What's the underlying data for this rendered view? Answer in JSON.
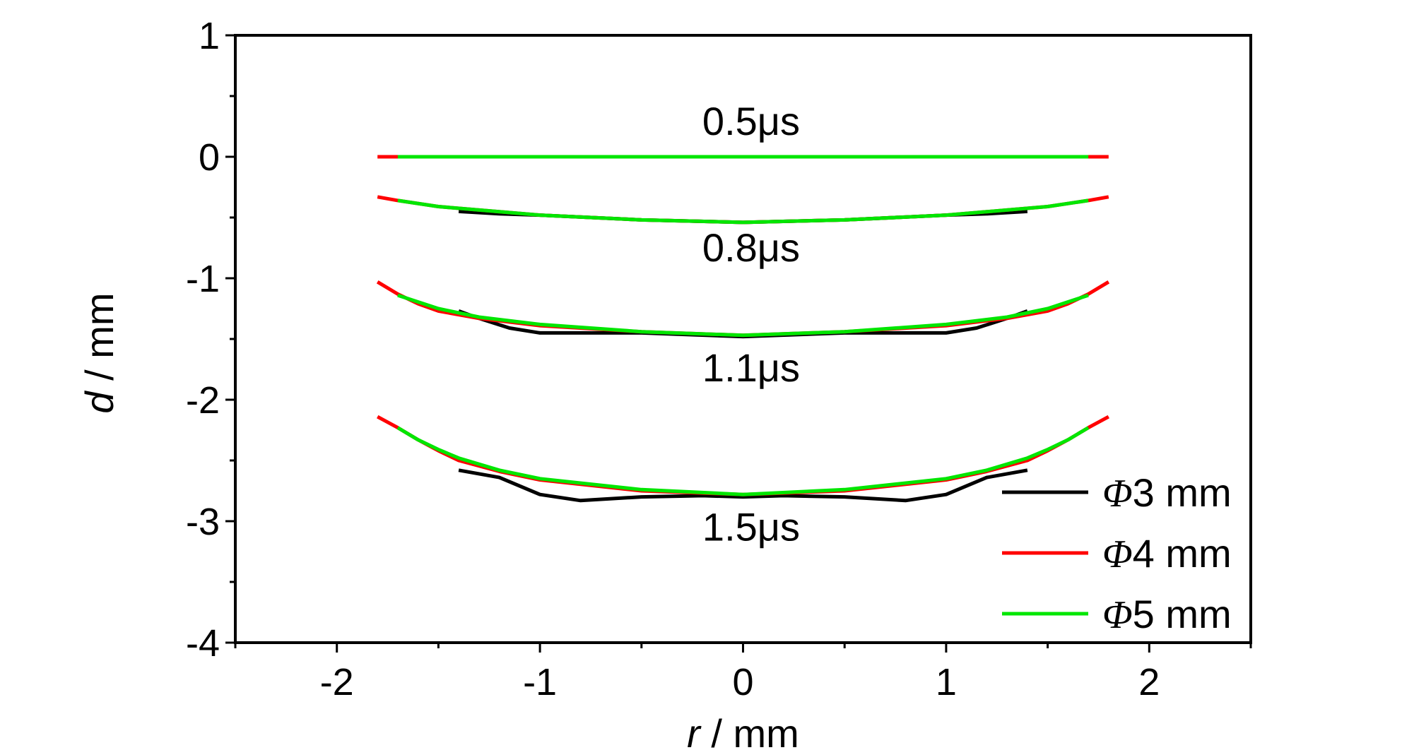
{
  "chart_data": {
    "type": "line",
    "xlabel": {
      "var": "r",
      "unit": " / mm"
    },
    "ylabel": {
      "var": "d",
      "unit": " / mm"
    },
    "xlim": [
      -2.5,
      2.5
    ],
    "ylim": [
      -4,
      1
    ],
    "xticks": [
      -2,
      -1,
      0,
      1,
      2
    ],
    "xtick_labels": [
      "-2",
      "-1",
      "0",
      "1",
      "2"
    ],
    "yticks": [
      1,
      0,
      -1,
      -2,
      -3,
      -4
    ],
    "ytick_labels": [
      "1",
      "0",
      "-1",
      "-2",
      "-3",
      "-4"
    ],
    "grid": false,
    "legend_position": "bottom-right",
    "legend": [
      {
        "phi": "Φ",
        "text": "3 mm",
        "color": "#000000"
      },
      {
        "phi": "Φ",
        "text": "4 mm",
        "color": "#ff0000"
      },
      {
        "phi": "Φ",
        "text": "5 mm",
        "color": "#00e600"
      }
    ],
    "annotations": [
      {
        "text": "0.5μs",
        "x": 0.04,
        "y": 0.18
      },
      {
        "text": "0.8μs",
        "x": 0.04,
        "y": -0.86
      },
      {
        "text": "1.1μs",
        "x": 0.04,
        "y": -1.85
      },
      {
        "text": "1.5μs",
        "x": 0.04,
        "y": -3.16
      }
    ],
    "series": [
      {
        "name": "Φ3 mm",
        "time": "0.5μs",
        "color": "#000000",
        "x": [
          -1.4,
          -1.0,
          -0.5,
          0,
          0.5,
          1.0,
          1.4
        ],
        "y": [
          0,
          0,
          0,
          0,
          0,
          0,
          0
        ]
      },
      {
        "name": "Φ4 mm",
        "time": "0.5μs",
        "color": "#ff0000",
        "x": [
          -1.8,
          -1.0,
          0,
          1.0,
          1.8
        ],
        "y": [
          0,
          0,
          0,
          0,
          0
        ]
      },
      {
        "name": "Φ5 mm",
        "time": "0.5μs",
        "color": "#00e600",
        "x": [
          -1.7,
          -1.0,
          0,
          1.0,
          1.7
        ],
        "y": [
          0,
          0,
          0,
          0,
          0
        ]
      },
      {
        "name": "Φ3 mm",
        "time": "0.8μs",
        "color": "#000000",
        "x": [
          -1.4,
          -1.2,
          -1.0,
          -0.5,
          0,
          0.5,
          1.0,
          1.2,
          1.4
        ],
        "y": [
          -0.45,
          -0.47,
          -0.48,
          -0.52,
          -0.54,
          -0.52,
          -0.48,
          -0.47,
          -0.45
        ]
      },
      {
        "name": "Φ4 mm",
        "time": "0.8μs",
        "color": "#ff0000",
        "x": [
          -1.8,
          -1.7,
          -1.5,
          -1.0,
          -0.5,
          0,
          0.5,
          1.0,
          1.5,
          1.7,
          1.8
        ],
        "y": [
          -0.33,
          -0.36,
          -0.41,
          -0.48,
          -0.52,
          -0.54,
          -0.52,
          -0.48,
          -0.41,
          -0.36,
          -0.33
        ]
      },
      {
        "name": "Φ5 mm",
        "time": "0.8μs",
        "color": "#00e600",
        "x": [
          -1.7,
          -1.5,
          -1.0,
          -0.5,
          0,
          0.5,
          1.0,
          1.5,
          1.7
        ],
        "y": [
          -0.36,
          -0.41,
          -0.48,
          -0.52,
          -0.54,
          -0.52,
          -0.48,
          -0.41,
          -0.36
        ]
      },
      {
        "name": "Φ3 mm",
        "time": "1.1μs",
        "color": "#000000",
        "x": [
          -1.4,
          -1.3,
          -1.15,
          -1.0,
          -0.8,
          -0.5,
          0,
          0.5,
          0.8,
          1.0,
          1.15,
          1.3,
          1.4
        ],
        "y": [
          -1.27,
          -1.33,
          -1.41,
          -1.45,
          -1.45,
          -1.45,
          -1.48,
          -1.45,
          -1.45,
          -1.45,
          -1.41,
          -1.33,
          -1.27
        ]
      },
      {
        "name": "Φ4 mm",
        "time": "1.1μs",
        "color": "#ff0000",
        "x": [
          -1.8,
          -1.7,
          -1.6,
          -1.5,
          -1.3,
          -1.0,
          -0.5,
          0,
          0.5,
          1.0,
          1.3,
          1.5,
          1.6,
          1.7,
          1.8
        ],
        "y": [
          -1.03,
          -1.13,
          -1.21,
          -1.27,
          -1.33,
          -1.39,
          -1.44,
          -1.47,
          -1.44,
          -1.39,
          -1.33,
          -1.27,
          -1.21,
          -1.13,
          -1.03
        ]
      },
      {
        "name": "Φ5 mm",
        "time": "1.1μs",
        "color": "#00e600",
        "x": [
          -1.7,
          -1.5,
          -1.3,
          -1.0,
          -0.5,
          0,
          0.5,
          1.0,
          1.3,
          1.5,
          1.7
        ],
        "y": [
          -1.14,
          -1.25,
          -1.32,
          -1.38,
          -1.44,
          -1.47,
          -1.44,
          -1.38,
          -1.32,
          -1.25,
          -1.14
        ]
      },
      {
        "name": "Φ3 mm",
        "time": "1.5μs",
        "color": "#000000",
        "x": [
          -1.4,
          -1.2,
          -1.0,
          -0.8,
          -0.5,
          -0.2,
          0,
          0.2,
          0.5,
          0.8,
          1.0,
          1.2,
          1.4
        ],
        "y": [
          -2.58,
          -2.64,
          -2.78,
          -2.83,
          -2.8,
          -2.79,
          -2.8,
          -2.79,
          -2.8,
          -2.83,
          -2.78,
          -2.64,
          -2.58
        ]
      },
      {
        "name": "Φ4 mm",
        "time": "1.5μs",
        "color": "#ff0000",
        "x": [
          -1.8,
          -1.7,
          -1.6,
          -1.5,
          -1.4,
          -1.2,
          -1.0,
          -0.5,
          0,
          0.5,
          1.0,
          1.2,
          1.4,
          1.5,
          1.6,
          1.7,
          1.8
        ],
        "y": [
          -2.14,
          -2.23,
          -2.33,
          -2.42,
          -2.5,
          -2.59,
          -2.66,
          -2.75,
          -2.78,
          -2.75,
          -2.66,
          -2.59,
          -2.5,
          -2.42,
          -2.33,
          -2.23,
          -2.14
        ]
      },
      {
        "name": "Φ5 mm",
        "time": "1.5μs",
        "color": "#00e600",
        "x": [
          -1.7,
          -1.6,
          -1.5,
          -1.4,
          -1.2,
          -1.0,
          -0.5,
          0,
          0.5,
          1.0,
          1.2,
          1.4,
          1.5,
          1.6,
          1.7
        ],
        "y": [
          -2.23,
          -2.33,
          -2.41,
          -2.48,
          -2.58,
          -2.65,
          -2.74,
          -2.78,
          -2.74,
          -2.65,
          -2.58,
          -2.48,
          -2.41,
          -2.33,
          -2.23
        ]
      }
    ]
  }
}
